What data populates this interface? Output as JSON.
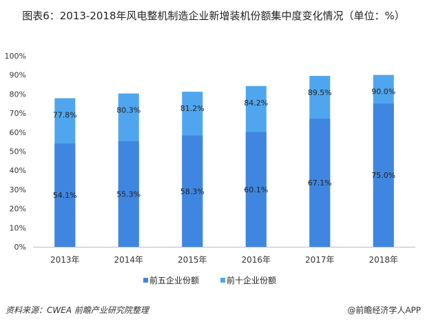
{
  "title": "图表6：2013-2018年风电整机制造企业新增装机份额集中度变化情况（单位：%）",
  "source": "资料来源：CWEA  前瞻产业研究院整理",
  "brand": "@前瞻经济学人APP",
  "chart_data": {
    "type": "bar",
    "title": "图表6：2013-2018年风电整机制造企业新增装机份额集中度变化情况（单位：%）",
    "categories": [
      "2013年",
      "2014年",
      "2015年",
      "2016年",
      "2017年",
      "2018年"
    ],
    "series": [
      {
        "name": "前五企业份额",
        "values": [
          54.1,
          55.3,
          58.3,
          60.1,
          67.1,
          75.0
        ],
        "labels": [
          "54.1%",
          "55.3%",
          "58.3%",
          "60.1%",
          "67.1%",
          "75.0%"
        ],
        "color": "#3f86e0"
      },
      {
        "name": "前十企业份额",
        "values": [
          77.8,
          80.3,
          81.2,
          84.2,
          89.5,
          90.0
        ],
        "labels": [
          "77.8%",
          "80.3%",
          "81.2%",
          "84.2%",
          "89.5%",
          "90.0%"
        ],
        "color": "#4fa6ee"
      }
    ],
    "ylim": [
      0,
      100
    ],
    "yticks": [
      "0%",
      "10%",
      "20%",
      "30%",
      "40%",
      "50%",
      "60%",
      "70%",
      "80%",
      "90%",
      "100%"
    ],
    "grid": false,
    "legend": "bottom",
    "overlapping": true
  }
}
